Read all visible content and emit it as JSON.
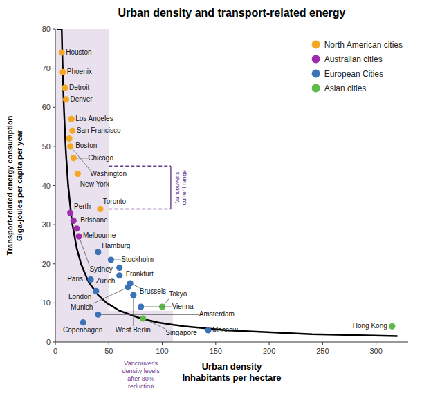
{
  "chart_data": {
    "type": "scatter",
    "title": "Urban density and transport-related energy",
    "x_label": "Urban density\nInhabitants per hectare",
    "y_label": "Transport-related energy consumption\nGiga-joules per capita per year",
    "xlim": [
      0,
      330
    ],
    "ylim": [
      0,
      80
    ],
    "xticks": [
      0,
      50,
      100,
      150,
      200,
      250,
      300
    ],
    "yticks": [
      0,
      10,
      20,
      30,
      40,
      50,
      60,
      70,
      80
    ],
    "grid": false,
    "legend": "upper right",
    "series": [
      {
        "name": "North American cities",
        "color": "#F5A623",
        "marker": "circle",
        "labels": [
          "Houston",
          "Phoenix",
          "Detroit",
          "Denver",
          "Los Angeles",
          "San Francisco",
          "Boston",
          "Washington",
          "Chicago",
          "New York",
          "Toronto"
        ],
        "x": [
          6,
          7,
          9,
          10,
          15,
          16,
          13,
          14,
          17,
          21,
          42
        ],
        "values": [
          74,
          69,
          65,
          62,
          57,
          54,
          52,
          50,
          47,
          43,
          34
        ]
      },
      {
        "name": "Australian cities",
        "color": "#9B2EAA",
        "marker": "circle",
        "labels": [
          "Perth",
          "Brisbane",
          "Melbourne",
          "Sydney"
        ],
        "x": [
          14,
          17,
          20,
          22
        ],
        "values": [
          33,
          31,
          29,
          27
        ]
      },
      {
        "name": "European Cities",
        "color": "#3B72B8",
        "marker": "circle",
        "labels": [
          "Hamburg",
          "Stockholm",
          "Frankfurt",
          "Zurich",
          "Brussels",
          "Paris",
          "London",
          "Munich",
          "West Berlin",
          "Vienna",
          "Amsterdam",
          "Copenhagen",
          "Moscow"
        ],
        "x": [
          40,
          52,
          60,
          60,
          70,
          33,
          38,
          68,
          73,
          80,
          40,
          26,
          143
        ],
        "values": [
          23,
          21,
          19,
          17,
          15,
          16,
          13,
          14,
          12,
          9,
          7,
          5,
          3
        ]
      },
      {
        "name": "Asian cities",
        "color": "#5DBB4A",
        "marker": "circle",
        "labels": [
          "Singapore",
          "Tokyo",
          "Hong Kong"
        ],
        "x": [
          82,
          100,
          315
        ],
        "values": [
          6,
          9,
          4
        ]
      },
      {
        "type": "line",
        "color": "#000000",
        "line_style": "solid",
        "x": [
          1.5,
          6,
          6.4,
          7.5,
          8,
          9.6,
          10,
          12,
          15,
          16,
          20,
          24,
          30,
          32,
          40,
          48,
          60,
          80,
          96,
          120,
          160,
          240,
          320
        ],
        "values": [
          80,
          80,
          75,
          64,
          60,
          50,
          48,
          40,
          32,
          30,
          24,
          20,
          16,
          15,
          12,
          10,
          8,
          6,
          5,
          4,
          3,
          2,
          1.5
        ]
      }
    ],
    "annotations": [
      {
        "text": "Vancouver's\ncurrent range",
        "color": "#6B3A8C",
        "line_style": "dashed",
        "x": [
          50,
          108
        ],
        "y": [
          34,
          45
        ]
      },
      {
        "text": "Vancouver's\ndensity levels\nafter 80%\nreduction",
        "color": "#6B3A8C",
        "regions": [
          {
            "x": [
              0,
              50
            ],
            "y": [
              0,
              80
            ]
          },
          {
            "x": [
              50,
              110
            ],
            "y": [
              0,
              8
            ]
          }
        ]
      }
    ]
  }
}
